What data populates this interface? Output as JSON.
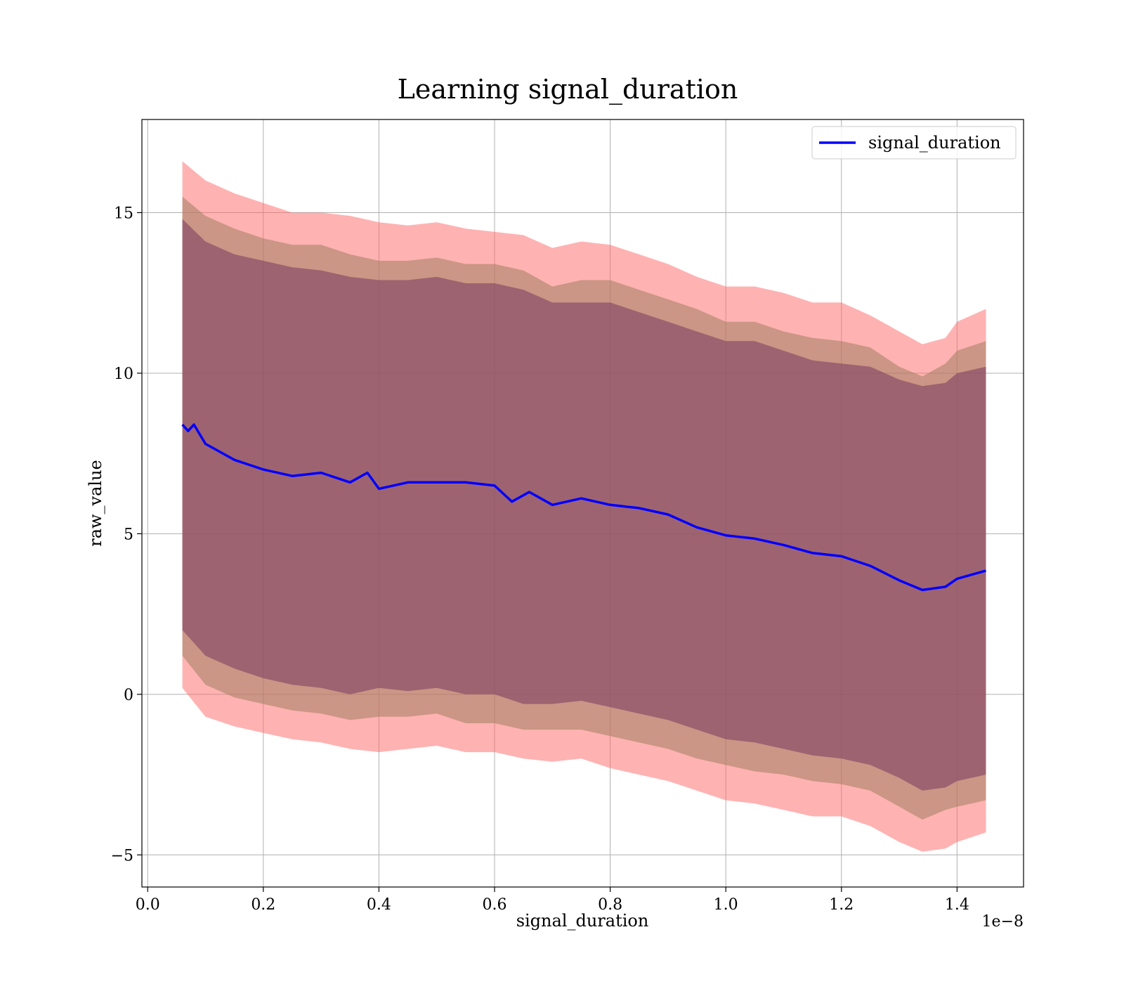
{
  "chart_data": {
    "type": "line",
    "title": "Learning signal_duration",
    "xlabel": "signal_duration",
    "ylabel": "raw_value",
    "x_offset_label": "1e−8",
    "xlim": [
      -0.01,
      1.515
    ],
    "ylim": [
      -6.0,
      17.9
    ],
    "x_ticks": [
      0.0,
      0.2,
      0.4,
      0.6,
      0.8,
      1.0,
      1.2,
      1.4
    ],
    "x_tick_labels": [
      "0.0",
      "0.2",
      "0.4",
      "0.6",
      "0.8",
      "1.0",
      "1.2",
      "1.4"
    ],
    "y_ticks": [
      -5,
      0,
      5,
      10,
      15
    ],
    "y_tick_labels": [
      "−5",
      "0",
      "5",
      "10",
      "15"
    ],
    "grid": true,
    "legend": {
      "position": "top-right",
      "entries": [
        "signal_duration"
      ]
    },
    "series": [
      {
        "name": "signal_duration",
        "color": "#0000ff",
        "x": [
          0.06,
          0.07,
          0.08,
          0.1,
          0.12,
          0.15,
          0.2,
          0.25,
          0.3,
          0.35,
          0.38,
          0.4,
          0.45,
          0.5,
          0.55,
          0.6,
          0.63,
          0.66,
          0.7,
          0.75,
          0.8,
          0.85,
          0.9,
          0.95,
          1.0,
          1.05,
          1.1,
          1.15,
          1.2,
          1.25,
          1.3,
          1.34,
          1.38,
          1.4,
          1.45
        ],
        "values": [
          8.4,
          8.2,
          8.4,
          7.8,
          7.6,
          7.3,
          7.0,
          6.8,
          6.9,
          6.6,
          6.9,
          6.4,
          6.6,
          6.6,
          6.6,
          6.5,
          6.0,
          6.3,
          5.9,
          6.1,
          5.9,
          5.8,
          5.6,
          5.2,
          4.95,
          4.85,
          4.65,
          4.4,
          4.3,
          4.0,
          3.55,
          3.25,
          3.35,
          3.6,
          3.85
        ]
      }
    ],
    "bands": [
      {
        "name": "outer-band",
        "color": "#ff6666",
        "opacity": 0.5,
        "x": [
          0.06,
          0.1,
          0.15,
          0.2,
          0.25,
          0.3,
          0.35,
          0.4,
          0.45,
          0.5,
          0.55,
          0.6,
          0.65,
          0.7,
          0.75,
          0.8,
          0.85,
          0.9,
          0.95,
          1.0,
          1.05,
          1.1,
          1.15,
          1.2,
          1.25,
          1.3,
          1.34,
          1.38,
          1.4,
          1.45
        ],
        "upper": [
          16.6,
          16.0,
          15.6,
          15.3,
          15.0,
          15.0,
          14.9,
          14.7,
          14.6,
          14.7,
          14.5,
          14.4,
          14.3,
          13.9,
          14.1,
          14.0,
          13.7,
          13.4,
          13.0,
          12.7,
          12.7,
          12.5,
          12.2,
          12.2,
          11.8,
          11.3,
          10.9,
          11.1,
          11.6,
          12.0
        ],
        "lower": [
          0.2,
          -0.7,
          -1.0,
          -1.2,
          -1.4,
          -1.5,
          -1.7,
          -1.8,
          -1.7,
          -1.6,
          -1.8,
          -1.8,
          -2.0,
          -2.1,
          -2.0,
          -2.3,
          -2.5,
          -2.7,
          -3.0,
          -3.3,
          -3.4,
          -3.6,
          -3.8,
          -3.8,
          -4.1,
          -4.6,
          -4.9,
          -4.8,
          -4.6,
          -4.3
        ]
      },
      {
        "name": "middle-band",
        "color": "#a08060",
        "opacity": 0.55,
        "x": [
          0.06,
          0.1,
          0.15,
          0.2,
          0.25,
          0.3,
          0.35,
          0.4,
          0.45,
          0.5,
          0.55,
          0.6,
          0.65,
          0.7,
          0.75,
          0.8,
          0.85,
          0.9,
          0.95,
          1.0,
          1.05,
          1.1,
          1.15,
          1.2,
          1.25,
          1.3,
          1.34,
          1.38,
          1.4,
          1.45
        ],
        "upper": [
          15.5,
          14.9,
          14.5,
          14.2,
          14.0,
          14.0,
          13.7,
          13.5,
          13.5,
          13.6,
          13.4,
          13.4,
          13.2,
          12.7,
          12.9,
          12.9,
          12.6,
          12.3,
          12.0,
          11.6,
          11.6,
          11.3,
          11.1,
          11.0,
          10.8,
          10.2,
          9.9,
          10.3,
          10.7,
          11.0
        ],
        "lower": [
          1.2,
          0.3,
          -0.1,
          -0.3,
          -0.5,
          -0.6,
          -0.8,
          -0.7,
          -0.7,
          -0.6,
          -0.9,
          -0.9,
          -1.1,
          -1.1,
          -1.1,
          -1.3,
          -1.5,
          -1.7,
          -2.0,
          -2.2,
          -2.4,
          -2.5,
          -2.7,
          -2.8,
          -3.0,
          -3.5,
          -3.9,
          -3.6,
          -3.5,
          -3.3
        ]
      },
      {
        "name": "inner-band",
        "color": "#7a3a60",
        "opacity": 0.55,
        "x": [
          0.06,
          0.1,
          0.15,
          0.2,
          0.25,
          0.3,
          0.35,
          0.4,
          0.45,
          0.5,
          0.55,
          0.6,
          0.65,
          0.7,
          0.75,
          0.8,
          0.85,
          0.9,
          0.95,
          1.0,
          1.05,
          1.1,
          1.15,
          1.2,
          1.25,
          1.3,
          1.34,
          1.38,
          1.4,
          1.45
        ],
        "upper": [
          14.8,
          14.1,
          13.7,
          13.5,
          13.3,
          13.2,
          13.0,
          12.9,
          12.9,
          13.0,
          12.8,
          12.8,
          12.6,
          12.2,
          12.2,
          12.2,
          11.9,
          11.6,
          11.3,
          11.0,
          11.0,
          10.7,
          10.4,
          10.3,
          10.2,
          9.8,
          9.6,
          9.7,
          10.0,
          10.2
        ],
        "lower": [
          2.0,
          1.2,
          0.8,
          0.5,
          0.3,
          0.2,
          0.0,
          0.2,
          0.1,
          0.2,
          0.0,
          0.0,
          -0.3,
          -0.3,
          -0.2,
          -0.4,
          -0.6,
          -0.8,
          -1.1,
          -1.4,
          -1.5,
          -1.7,
          -1.9,
          -2.0,
          -2.2,
          -2.6,
          -3.0,
          -2.9,
          -2.7,
          -2.5
        ]
      }
    ]
  }
}
